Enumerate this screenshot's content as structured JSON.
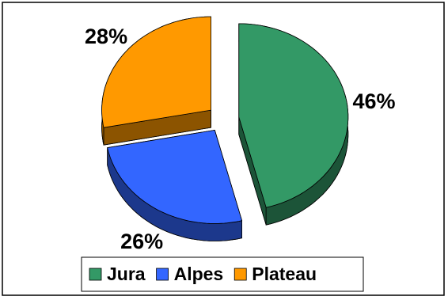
{
  "chart_data": {
    "type": "pie",
    "categories": [
      "Jura",
      "Alpes",
      "Plateau"
    ],
    "values": [
      46,
      26,
      28
    ],
    "value_labels": [
      "46%",
      "26%",
      "28%"
    ],
    "colors": [
      "#339966",
      "#3366ff",
      "#ff9900"
    ],
    "legend": "bottom"
  }
}
